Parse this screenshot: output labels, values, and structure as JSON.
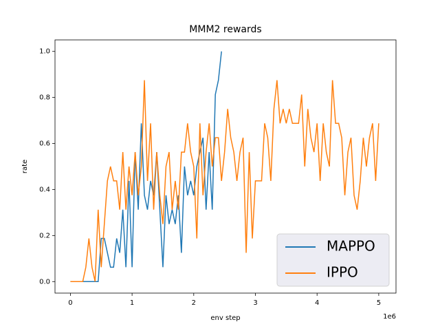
{
  "chart_data": {
    "type": "line",
    "title": "MMM2 rewards",
    "x_label": "env step",
    "y_label": "rate",
    "x_offset_label": "1e6",
    "xlim": [
      -0.25,
      5.28
    ],
    "ylim": [
      -0.05,
      1.05
    ],
    "xticks": [
      0,
      1,
      2,
      3,
      4,
      5
    ],
    "yticks": [
      {
        "value": 0,
        "label": "0.0"
      },
      0.2,
      0.4,
      0.6,
      0.8,
      {
        "value": 1,
        "label": "1.0"
      }
    ],
    "legend": "lower right",
    "grid": false,
    "series": [
      {
        "name": "MAPPO",
        "color": "#1f77b4",
        "x": [
          0,
          0.05,
          0.1,
          0.15,
          0.2,
          0.25,
          0.3,
          0.35,
          0.4,
          0.45,
          0.5,
          0.55,
          0.6,
          0.65,
          0.7,
          0.75,
          0.8,
          0.85,
          0.9,
          0.95,
          1.0,
          1.05,
          1.1,
          1.15,
          1.2,
          1.25,
          1.3,
          1.35,
          1.4,
          1.45,
          1.5,
          1.55,
          1.6,
          1.65,
          1.7,
          1.75,
          1.8,
          1.85,
          1.9,
          1.95,
          2.0,
          2.05,
          2.1,
          2.15,
          2.2,
          2.25,
          2.3,
          2.35,
          2.4,
          2.45
        ],
        "values": [
          0,
          0,
          0,
          0,
          0,
          0,
          0,
          0,
          0,
          0,
          0.1875,
          0.1875,
          0.125,
          0.0625,
          0.0625,
          0.1875,
          0.125,
          0.3125,
          0.0625,
          0.4375,
          0.0625,
          0.5625,
          0.3125,
          0.6875,
          0.375,
          0.3125,
          0.4375,
          0.375,
          0.5625,
          0.3125,
          0.0625,
          0.375,
          0.25,
          0.3125,
          0.25,
          0.375,
          0.125,
          0.5,
          0.375,
          0.4375,
          0.375,
          0.5,
          0.5625,
          0.625,
          0.3125,
          0.5625,
          0.3125,
          0.8125,
          0.875,
          1.0
        ]
      },
      {
        "name": "IPPO",
        "color": "#ff7f0e",
        "x": [
          0,
          0.05,
          0.1,
          0.15,
          0.2,
          0.25,
          0.3,
          0.35,
          0.4,
          0.45,
          0.5,
          0.55,
          0.6,
          0.65,
          0.7,
          0.75,
          0.8,
          0.85,
          0.9,
          0.95,
          1.0,
          1.05,
          1.1,
          1.15,
          1.2,
          1.25,
          1.3,
          1.35,
          1.4,
          1.45,
          1.5,
          1.55,
          1.6,
          1.65,
          1.7,
          1.75,
          1.8,
          1.85,
          1.9,
          1.95,
          2.0,
          2.05,
          2.1,
          2.15,
          2.2,
          2.25,
          2.3,
          2.35,
          2.4,
          2.45,
          2.5,
          2.55,
          2.6,
          2.65,
          2.7,
          2.75,
          2.8,
          2.85,
          2.9,
          2.95,
          3.0,
          3.05,
          3.1,
          3.15,
          3.2,
          3.25,
          3.3,
          3.35,
          3.4,
          3.45,
          3.5,
          3.55,
          3.6,
          3.65,
          3.7,
          3.75,
          3.8,
          3.85,
          3.9,
          3.95,
          4.0,
          4.05,
          4.1,
          4.15,
          4.2,
          4.25,
          4.3,
          4.35,
          4.4,
          4.45,
          4.5,
          4.55,
          4.6,
          4.65,
          4.7,
          4.75,
          4.8,
          4.85,
          4.9,
          4.95,
          5.0
        ],
        "values": [
          0,
          0,
          0,
          0,
          0,
          0.0625,
          0.1875,
          0.0625,
          0,
          0.3125,
          0.0625,
          0.25,
          0.4375,
          0.5,
          0.4375,
          0.4375,
          0.3125,
          0.5625,
          0.3125,
          0.5,
          0.375,
          0.5625,
          0.375,
          0.5,
          0.875,
          0.4375,
          0.6875,
          0.3125,
          0.5625,
          0.375,
          0.25,
          0.5,
          0.5625,
          0.3125,
          0.4375,
          0.3125,
          0.5625,
          0.5625,
          0.6875,
          0.5625,
          0.5,
          0.1875,
          0.6875,
          0.375,
          0.5625,
          0.6875,
          0.5,
          0.625,
          0.625,
          0.4375,
          0.5625,
          0.75,
          0.625,
          0.5625,
          0.4375,
          0.5625,
          0.625,
          0.125,
          0.5625,
          0.1875,
          0.4375,
          0.4375,
          0.4375,
          0.6875,
          0.625,
          0.4375,
          0.75,
          0.875,
          0.6875,
          0.75,
          0.6875,
          0.75,
          0.6875,
          0.6875,
          0.6875,
          0.8125,
          0.5,
          0.75,
          0.625,
          0.5625,
          0.6875,
          0.4375,
          0.6875,
          0.5625,
          0.5,
          0.875,
          0.6875,
          0.6875,
          0.625,
          0.375,
          0.5625,
          0.625,
          0.375,
          0.3125,
          0.4375,
          0.625,
          0.5,
          0.625,
          0.6875,
          0.4375,
          0.6875
        ]
      }
    ]
  }
}
